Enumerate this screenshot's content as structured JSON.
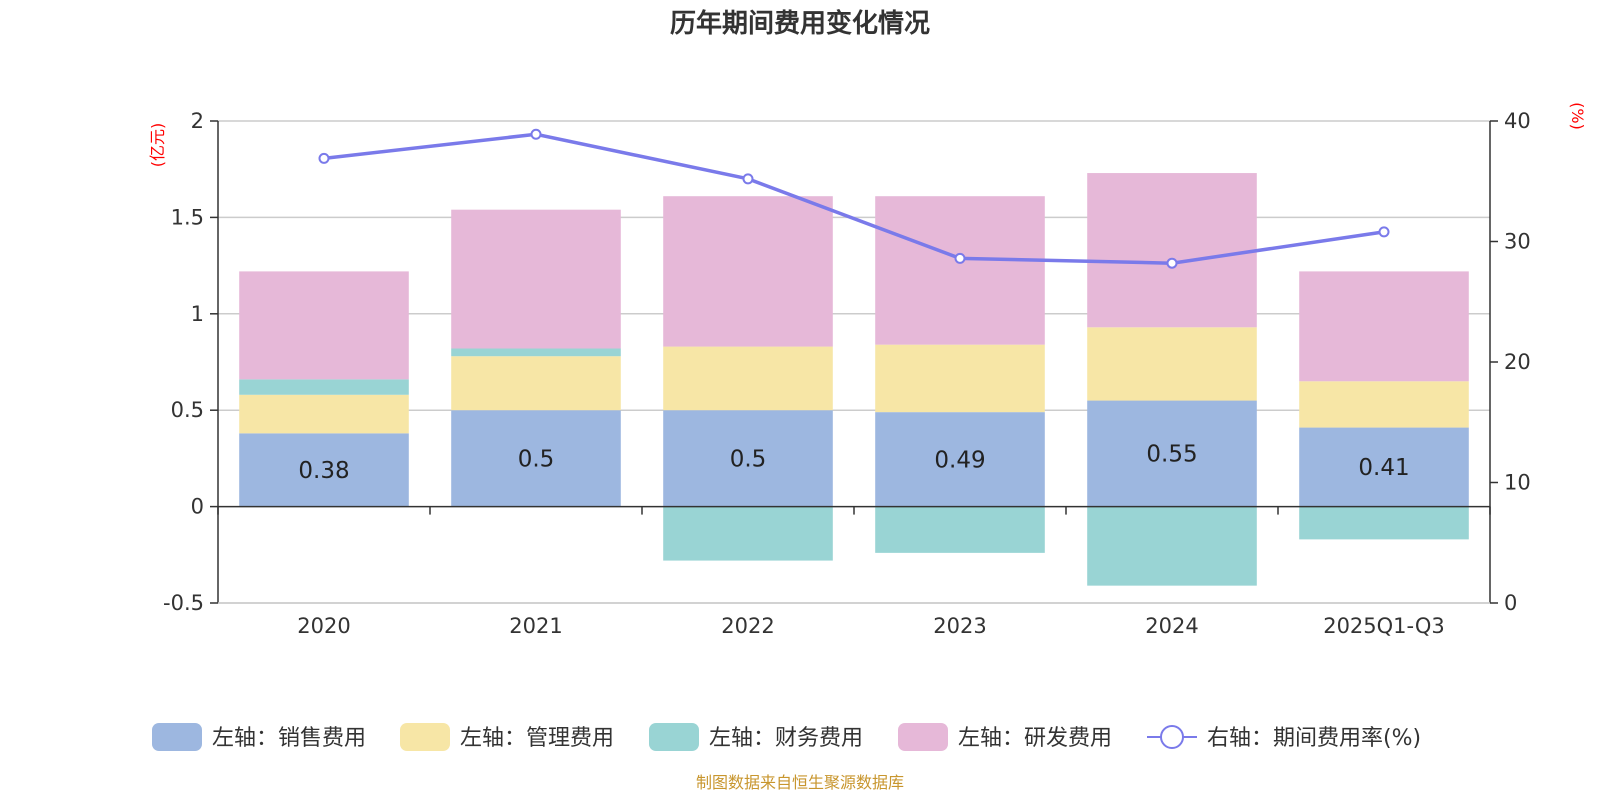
{
  "chart_data": {
    "type": "bar",
    "title": "历年期间费用变化情况",
    "categories": [
      "2020",
      "2021",
      "2022",
      "2023",
      "2024",
      "2025Q1-Q3"
    ],
    "left_axis": {
      "unit": "(亿元)",
      "ylim": [
        -0.5,
        2
      ],
      "ticks": [
        "2",
        "1.5",
        "1",
        "0.5",
        "0",
        "-0.5"
      ],
      "tick_values": [
        2,
        1.5,
        1,
        0.5,
        0,
        -0.5
      ]
    },
    "right_axis": {
      "unit": "(%)",
      "ylim": [
        0,
        40
      ],
      "ticks": [
        "40",
        "30",
        "20",
        "10",
        "0"
      ],
      "tick_values": [
        40,
        30,
        20,
        10,
        0
      ]
    },
    "series": [
      {
        "name": "左轴：销售费用",
        "axis": "left",
        "kind": "bar",
        "color": "#9db7e0",
        "values": [
          0.38,
          0.5,
          0.5,
          0.49,
          0.55,
          0.41
        ],
        "labels": [
          "0.38",
          "0.5",
          "0.5",
          "0.49",
          "0.55",
          "0.41"
        ]
      },
      {
        "name": "左轴：管理费用",
        "axis": "left",
        "kind": "bar",
        "color": "#f7e6a6",
        "values": [
          0.2,
          0.28,
          0.33,
          0.35,
          0.38,
          0.24
        ]
      },
      {
        "name": "左轴：财务费用",
        "axis": "left",
        "kind": "bar",
        "color": "#99d4d4",
        "values": [
          0.08,
          0.04,
          -0.28,
          -0.24,
          -0.41,
          -0.17
        ]
      },
      {
        "name": "左轴：研发费用",
        "axis": "left",
        "kind": "bar",
        "color": "#e6b8d8",
        "values": [
          0.56,
          0.72,
          0.78,
          0.77,
          0.8,
          0.57
        ]
      },
      {
        "name": "右轴：期间费用率(%)",
        "axis": "right",
        "kind": "line",
        "color": "#7a7aea",
        "values": [
          36.9,
          38.9,
          35.2,
          28.6,
          28.2,
          30.8
        ]
      }
    ]
  },
  "source": "制图数据来自恒生聚源数据库"
}
